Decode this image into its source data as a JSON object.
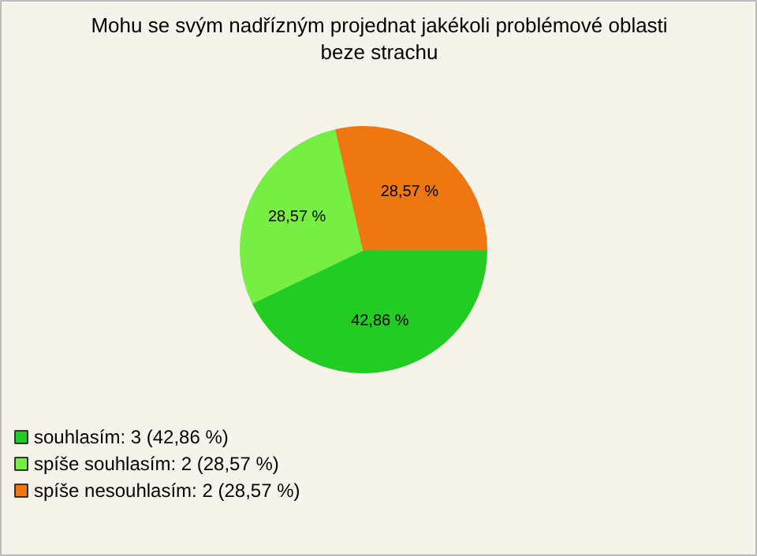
{
  "chart_data": {
    "type": "pie",
    "title": "Mohu se svým nadřízným projednat jakékoli problémové oblasti beze strachu",
    "categories": [
      "souhlasím: 3 (42,86 %)",
      "spíše souhlasím: 2 (28,57 %)",
      "spíše nesouhlasím: 2 (28,57 %)"
    ],
    "values": [
      42.86,
      28.57,
      28.57
    ],
    "value_labels": [
      "42,86 %",
      "28,57 %",
      "28,57 %"
    ],
    "colors": [
      "#22cc22",
      "#77ee44",
      "#ee7711"
    ],
    "legend": "bottom left"
  }
}
